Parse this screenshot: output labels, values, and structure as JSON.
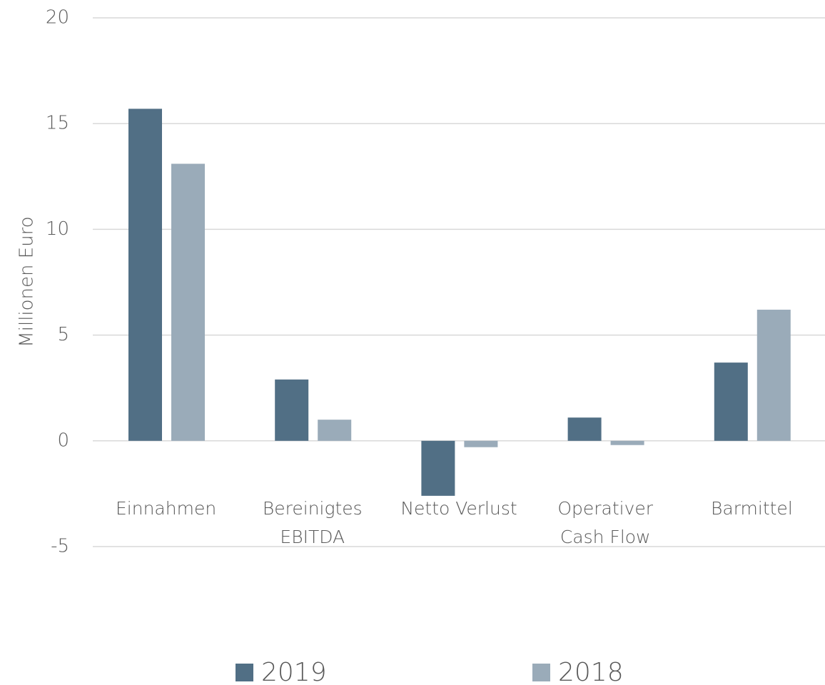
{
  "chart_data": {
    "type": "bar",
    "y_label": "Millionen Euro",
    "categories": [
      "Einnahmen",
      "Bereinigtes EBITDA",
      "Netto Verlust",
      "Operativer Cash Flow",
      "Barmittel"
    ],
    "series": [
      {
        "name": "2019",
        "color": "#516f85",
        "values": [
          15.7,
          2.9,
          -2.6,
          1.1,
          3.7
        ]
      },
      {
        "name": "2018",
        "color": "#9aabb9",
        "values": [
          13.1,
          1.0,
          -0.3,
          -0.2,
          6.2
        ]
      }
    ],
    "ylim": [
      -5,
      20
    ],
    "yticks": [
      -5,
      0,
      5,
      10,
      15,
      20
    ],
    "grid": true,
    "legend": "bottom"
  }
}
